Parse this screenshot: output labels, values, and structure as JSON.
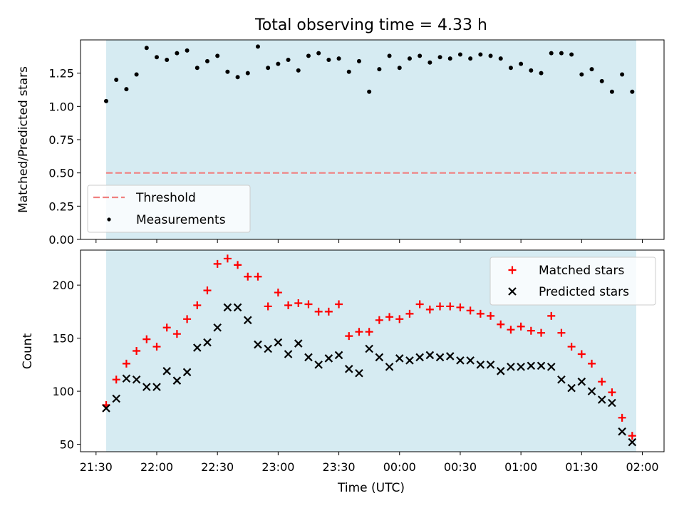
{
  "chart_data": [
    {
      "type": "scatter",
      "title": "Total observing time = 4.33 h",
      "ylabel": "Matched/Predicted stars",
      "xlabel": "",
      "ylim": [
        0.0,
        1.5
      ],
      "yticks": [
        "0.00",
        "0.25",
        "0.50",
        "0.75",
        "1.00",
        "1.25"
      ],
      "observing_window": [
        "21:35",
        "01:57"
      ],
      "threshold": 0.5,
      "legend_location": "lower left",
      "colors": {
        "threshold": "#f08080",
        "measurements": "#000000",
        "window": "#add8e6"
      },
      "series": [
        {
          "name": "Threshold",
          "style": "dashed-line",
          "x": [
            "21:35",
            "01:57"
          ],
          "values": [
            0.5,
            0.5
          ]
        },
        {
          "name": "Measurements",
          "style": "dot",
          "x": [
            "21:35",
            "21:40",
            "21:45",
            "21:50",
            "21:55",
            "22:00",
            "22:05",
            "22:10",
            "22:15",
            "22:20",
            "22:25",
            "22:30",
            "22:35",
            "22:40",
            "22:45",
            "22:50",
            "22:55",
            "23:00",
            "23:05",
            "23:10",
            "23:15",
            "23:20",
            "23:25",
            "23:30",
            "23:35",
            "23:40",
            "23:45",
            "23:50",
            "23:55",
            "00:00",
            "00:05",
            "00:10",
            "00:15",
            "00:20",
            "00:25",
            "00:30",
            "00:35",
            "00:40",
            "00:45",
            "00:50",
            "00:55",
            "01:00",
            "01:05",
            "01:10",
            "01:15",
            "01:20",
            "01:25",
            "01:30",
            "01:35",
            "01:40",
            "01:45",
            "01:50",
            "01:55"
          ],
          "values": [
            1.04,
            1.2,
            1.13,
            1.24,
            1.44,
            1.37,
            1.35,
            1.4,
            1.42,
            1.29,
            1.34,
            1.38,
            1.26,
            1.22,
            1.25,
            1.45,
            1.29,
            1.32,
            1.35,
            1.27,
            1.38,
            1.4,
            1.35,
            1.36,
            1.26,
            1.34,
            1.11,
            1.28,
            1.38,
            1.29,
            1.36,
            1.38,
            1.33,
            1.37,
            1.36,
            1.39,
            1.36,
            1.39,
            1.38,
            1.36,
            1.29,
            1.32,
            1.27,
            1.25,
            1.4,
            1.4,
            1.39,
            1.24,
            1.28,
            1.19,
            1.11,
            1.24,
            1.11
          ]
        }
      ]
    },
    {
      "type": "scatter",
      "title": "",
      "xlabel": "Time (UTC)",
      "ylabel": "Count",
      "ylim": [
        43,
        233
      ],
      "yticks": [
        "50",
        "100",
        "150",
        "200"
      ],
      "xticks": [
        "21:30",
        "22:00",
        "22:30",
        "23:00",
        "23:30",
        "00:00",
        "00:30",
        "01:00",
        "01:30",
        "02:00"
      ],
      "observing_window": [
        "21:35",
        "01:57"
      ],
      "legend_location": "upper right",
      "colors": {
        "matched": "#ff0000",
        "predicted": "#000000",
        "window": "#add8e6"
      },
      "series": [
        {
          "name": "Matched stars",
          "marker": "+",
          "x": [
            "21:35",
            "21:40",
            "21:45",
            "21:50",
            "21:55",
            "22:00",
            "22:05",
            "22:10",
            "22:15",
            "22:20",
            "22:25",
            "22:30",
            "22:35",
            "22:40",
            "22:45",
            "22:50",
            "22:55",
            "23:00",
            "23:05",
            "23:10",
            "23:15",
            "23:20",
            "23:25",
            "23:30",
            "23:35",
            "23:40",
            "23:45",
            "23:50",
            "23:55",
            "00:00",
            "00:05",
            "00:10",
            "00:15",
            "00:20",
            "00:25",
            "00:30",
            "00:35",
            "00:40",
            "00:45",
            "00:50",
            "00:55",
            "01:00",
            "01:05",
            "01:10",
            "01:15",
            "01:20",
            "01:25",
            "01:30",
            "01:35",
            "01:40",
            "01:45",
            "01:50",
            "01:55"
          ],
          "values": [
            87,
            111,
            126,
            138,
            149,
            142,
            160,
            154,
            168,
            181,
            195,
            220,
            225,
            219,
            208,
            208,
            180,
            193,
            181,
            183,
            182,
            175,
            175,
            182,
            152,
            156,
            156,
            167,
            170,
            168,
            173,
            182,
            177,
            180,
            180,
            179,
            176,
            173,
            171,
            163,
            158,
            161,
            157,
            155,
            171,
            155,
            142,
            135,
            126,
            109,
            99,
            75,
            58
          ]
        },
        {
          "name": "Predicted stars",
          "marker": "x",
          "x": [
            "21:35",
            "21:40",
            "21:45",
            "21:50",
            "21:55",
            "22:00",
            "22:05",
            "22:10",
            "22:15",
            "22:20",
            "22:25",
            "22:30",
            "22:35",
            "22:40",
            "22:45",
            "22:50",
            "22:55",
            "23:00",
            "23:05",
            "23:10",
            "23:15",
            "23:20",
            "23:25",
            "23:30",
            "23:35",
            "23:40",
            "23:45",
            "23:50",
            "23:55",
            "00:00",
            "00:05",
            "00:10",
            "00:15",
            "00:20",
            "00:25",
            "00:30",
            "00:35",
            "00:40",
            "00:45",
            "00:50",
            "00:55",
            "01:00",
            "01:05",
            "01:10",
            "01:15",
            "01:20",
            "01:25",
            "01:30",
            "01:35",
            "01:40",
            "01:45",
            "01:50",
            "01:55"
          ],
          "values": [
            84,
            93,
            112,
            111,
            104,
            104,
            119,
            110,
            118,
            141,
            146,
            160,
            179,
            179,
            167,
            144,
            140,
            146,
            135,
            145,
            132,
            125,
            131,
            134,
            121,
            117,
            140,
            132,
            123,
            131,
            129,
            132,
            134,
            132,
            133,
            129,
            129,
            125,
            125,
            119,
            123,
            123,
            124,
            124,
            123,
            111,
            103,
            109,
            100,
            92,
            89,
            62,
            52
          ]
        }
      ]
    }
  ]
}
